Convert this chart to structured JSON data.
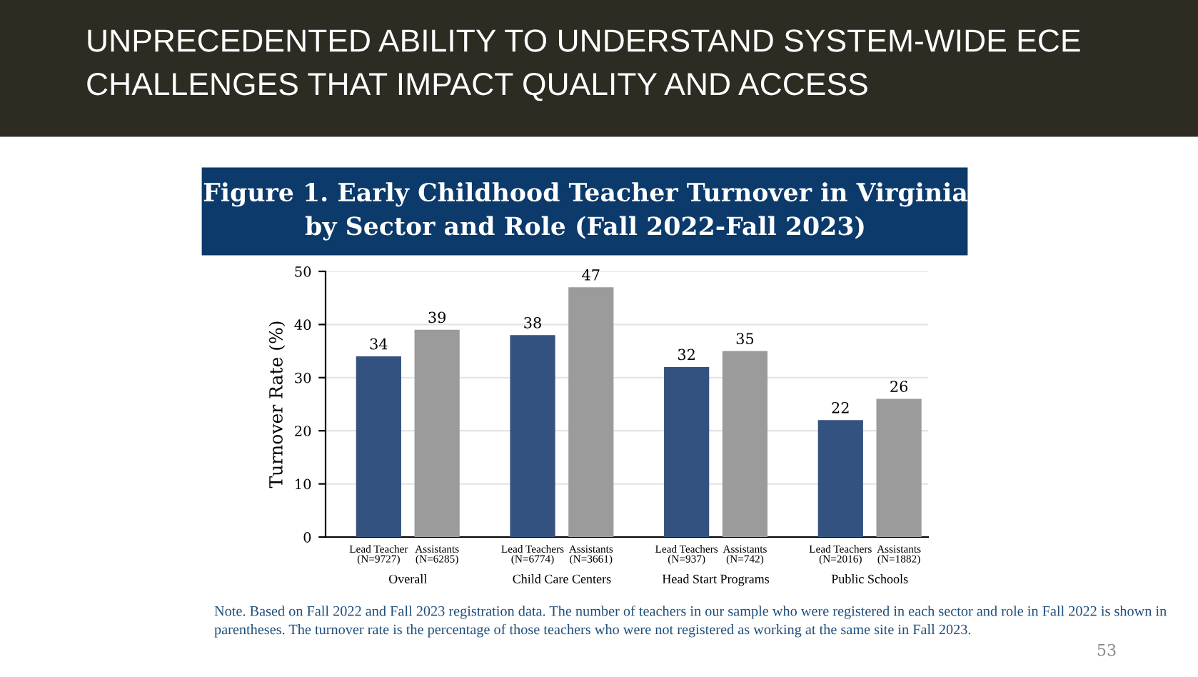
{
  "chart_data": {
    "type": "bar",
    "title": "UNPRECEDENTED ABILITY TO UNDERSTAND SYSTEM-WIDE ECE CHALLENGES THAT IMPACT QUALITY AND ACCESS",
    "subtitle": "Figure 1. Early Childhood Teacher Turnover in Virginia\nby Sector and Role (Fall 2022-Fall 2023)",
    "ylabel": "Turnover Rate (%)",
    "categories": [
      "Lead Teacher\n(N=9727)",
      "Assistants\n(N=6285)",
      "Lead Teachers\n(N=6774)",
      "Assistants\n(N=3661)",
      "Lead Teachers\n(N=937)",
      "Assistants\n(N=742)",
      "Lead Teachers\n(N=2016)",
      "Assistants\n(N=1882)"
    ],
    "values": [
      34,
      39,
      38,
      47,
      32,
      35,
      22,
      26
    ],
    "colors": [
      "#34527f",
      "#9b9b9b",
      "#34527f",
      "#9b9b9b",
      "#34527f",
      "#9b9b9b",
      "#34527f",
      "#9b9b9b"
    ],
    "data_labels": true,
    "ylim": [
      0,
      50
    ],
    "yticks": [
      0,
      10,
      20,
      30,
      40,
      50
    ],
    "grid": "y",
    "annotations": [
      "Overall",
      "Child Care Centers",
      "Head Start Programs",
      "Public Schools",
      "Note. Based on Fall 2022 and Fall 2023 registration data. The number of teachers in our sample who were registered in each sector and role in Fall 2022 is shown in parentheses. The turnover rate is the percentage of those teachers who were not registered as working at the same site in Fall 2023.",
      "53"
    ]
  }
}
